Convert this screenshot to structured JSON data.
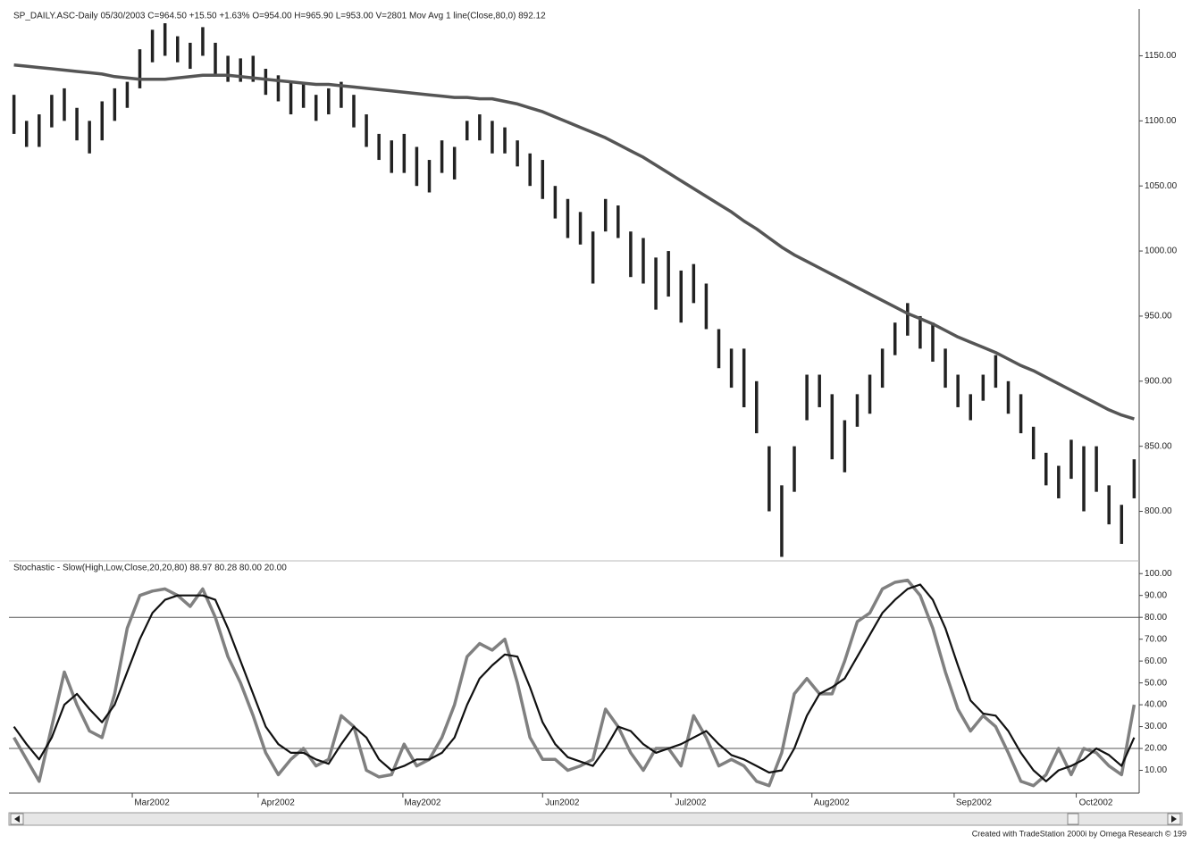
{
  "chart_data": [
    {
      "type": "ohlc",
      "title": "SP_DAILY.ASC-Daily  05/30/2003  C=964.50  +15.50  +1.63%  O=954.00  H=965.90  L=953.00  V=2801  Mov Avg 1 line(Close,80,0)  892.12",
      "bar_color": "#222222",
      "high": [
        1120,
        1100,
        1105,
        1120,
        1125,
        1110,
        1100,
        1115,
        1125,
        1130,
        1155,
        1170,
        1175,
        1165,
        1160,
        1172,
        1160,
        1150,
        1148,
        1150,
        1140,
        1135,
        1130,
        1128,
        1120,
        1125,
        1130,
        1120,
        1105,
        1090,
        1085,
        1090,
        1080,
        1070,
        1085,
        1080,
        1100,
        1105,
        1100,
        1095,
        1085,
        1075,
        1070,
        1050,
        1040,
        1030,
        1015,
        1040,
        1035,
        1015,
        1010,
        995,
        1000,
        985,
        990,
        975,
        940,
        925,
        925,
        900,
        850,
        820,
        850,
        905,
        905,
        890,
        870,
        890,
        905,
        925,
        945,
        960,
        950,
        945,
        925,
        905,
        890,
        905,
        920,
        900,
        890,
        865,
        845,
        835,
        855,
        850,
        850,
        820,
        805,
        840
      ],
      "low": [
        1090,
        1080,
        1080,
        1095,
        1100,
        1085,
        1075,
        1085,
        1100,
        1110,
        1125,
        1145,
        1150,
        1145,
        1140,
        1150,
        1135,
        1130,
        1130,
        1130,
        1120,
        1115,
        1105,
        1110,
        1100,
        1105,
        1110,
        1095,
        1080,
        1070,
        1060,
        1060,
        1050,
        1045,
        1060,
        1055,
        1085,
        1085,
        1075,
        1075,
        1065,
        1050,
        1040,
        1025,
        1010,
        1005,
        975,
        1015,
        1010,
        980,
        975,
        955,
        965,
        945,
        960,
        940,
        910,
        895,
        880,
        860,
        800,
        765,
        815,
        870,
        880,
        840,
        830,
        865,
        875,
        895,
        920,
        935,
        925,
        915,
        895,
        880,
        870,
        885,
        895,
        875,
        860,
        840,
        820,
        810,
        825,
        800,
        815,
        790,
        775,
        810
      ],
      "ma": {
        "color": "#555555",
        "values": [
          1143,
          1142,
          1141,
          1140,
          1139,
          1138,
          1137,
          1136,
          1134,
          1133,
          1132,
          1132,
          1132,
          1133,
          1134,
          1135,
          1135,
          1135,
          1134,
          1133,
          1132,
          1131,
          1130,
          1129,
          1128,
          1128,
          1127,
          1126,
          1125,
          1124,
          1123,
          1122,
          1121,
          1120,
          1119,
          1118,
          1118,
          1117,
          1117,
          1115,
          1113,
          1110,
          1107,
          1103,
          1099,
          1095,
          1091,
          1087,
          1082,
          1077,
          1072,
          1066,
          1060,
          1054,
          1048,
          1042,
          1036,
          1030,
          1023,
          1017,
          1010,
          1003,
          997,
          992,
          987,
          982,
          977,
          972,
          967,
          962,
          957,
          952,
          948,
          944,
          939,
          934,
          930,
          926,
          922,
          917,
          912,
          908,
          903,
          898,
          893,
          888,
          883,
          878,
          874,
          871
        ]
      },
      "ylim": [
        764,
        1186
      ],
      "yticks": [
        {
          "value": 1150,
          "label": "1150.00"
        },
        {
          "value": 1100,
          "label": "1100.00"
        },
        {
          "value": 1050,
          "label": "1050.00"
        },
        {
          "value": 1000,
          "label": "1000.00"
        },
        {
          "value": 950,
          "label": "950.00"
        },
        {
          "value": 900,
          "label": "900.00"
        },
        {
          "value": 850,
          "label": "850.00"
        },
        {
          "value": 800,
          "label": "800.00"
        }
      ]
    },
    {
      "type": "line",
      "title": "Stochastic - Slow(High,Low,Close,20,20,80)  88.97  80.28  80.00  20.00",
      "series": [
        {
          "color": "#808080",
          "values": [
            25,
            15,
            5,
            30,
            55,
            40,
            28,
            25,
            45,
            75,
            90,
            92,
            93,
            90,
            85,
            93,
            80,
            62,
            50,
            35,
            18,
            8,
            15,
            20,
            12,
            15,
            35,
            30,
            10,
            7,
            8,
            22,
            12,
            15,
            25,
            40,
            62,
            68,
            65,
            70,
            50,
            25,
            15,
            15,
            10,
            12,
            15,
            38,
            30,
            18,
            10,
            20,
            20,
            12,
            35,
            25,
            12,
            15,
            12,
            5,
            3,
            18,
            45,
            52,
            45,
            45,
            60,
            78,
            82,
            93,
            96,
            97,
            90,
            75,
            55,
            38,
            28,
            35,
            30,
            18,
            5,
            3,
            8,
            20,
            8,
            20,
            18,
            12,
            8,
            40
          ]
        },
        {
          "color": "#111111",
          "values": [
            30,
            22,
            15,
            25,
            40,
            45,
            38,
            32,
            40,
            55,
            70,
            82,
            88,
            90,
            90,
            90,
            88,
            75,
            60,
            45,
            30,
            22,
            18,
            18,
            15,
            13,
            22,
            30,
            25,
            15,
            10,
            12,
            15,
            15,
            18,
            25,
            40,
            52,
            58,
            63,
            62,
            48,
            32,
            22,
            16,
            14,
            12,
            20,
            30,
            28,
            22,
            18,
            20,
            22,
            25,
            28,
            22,
            17,
            15,
            12,
            9,
            10,
            20,
            35,
            45,
            48,
            52,
            62,
            72,
            82,
            88,
            93,
            95,
            88,
            75,
            58,
            42,
            36,
            35,
            28,
            18,
            10,
            5,
            10,
            12,
            15,
            20,
            17,
            12,
            25
          ]
        }
      ],
      "levels": [
        80,
        20
      ],
      "ylim": [
        0,
        105
      ],
      "yticks": [
        {
          "value": 100,
          "label": "100.00"
        },
        {
          "value": 90,
          "label": "90.00"
        },
        {
          "value": 80,
          "label": "80.00"
        },
        {
          "value": 70,
          "label": "70.00"
        },
        {
          "value": 60,
          "label": "60.00"
        },
        {
          "value": 50,
          "label": "50.00"
        },
        {
          "value": 40,
          "label": "40.00"
        },
        {
          "value": 30,
          "label": "30.00"
        },
        {
          "value": 20,
          "label": "20.00"
        },
        {
          "value": 10,
          "label": "10.00"
        }
      ],
      "xlim": [
        -0.4,
        89.4
      ],
      "xticks": [
        {
          "value": 9.4,
          "label": "Mar2002"
        },
        {
          "value": 19.4,
          "label": "Apr2002"
        },
        {
          "value": 30.9,
          "label": "May2002"
        },
        {
          "value": 42,
          "label": "Jun2002"
        },
        {
          "value": 52.2,
          "label": "Jul2002"
        },
        {
          "value": 63.4,
          "label": "Aug2002"
        },
        {
          "value": 74.7,
          "label": "Sep2002"
        },
        {
          "value": 84.4,
          "label": "Oct2002"
        }
      ]
    }
  ],
  "footer": "Created with TradeStation 2000i by Omega Research © 199"
}
